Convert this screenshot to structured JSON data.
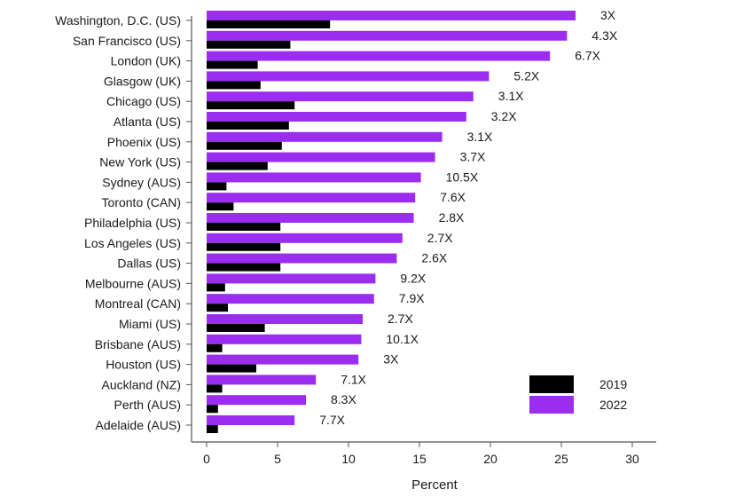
{
  "chart_data": {
    "type": "bar",
    "orientation": "horizontal",
    "categories": [
      "Washington, D.C. (US)",
      "San Francisco (US)",
      "London (UK)",
      "Glasgow (UK)",
      "Chicago (US)",
      "Atlanta (US)",
      "Phoenix (US)",
      "New York (US)",
      "Sydney (AUS)",
      "Toronto (CAN)",
      "Philadelphia (US)",
      "Los Angeles (US)",
      "Dallas (US)",
      "Melbourne (AUS)",
      "Montreal (CAN)",
      "Miami (US)",
      "Brisbane (AUS)",
      "Houston (US)",
      "Auckland (NZ)",
      "Perth (AUS)",
      "Adelaide (AUS)"
    ],
    "series": [
      {
        "name": "2019",
        "color": "#000000",
        "values": [
          8.7,
          5.9,
          3.6,
          3.8,
          6.2,
          5.8,
          5.3,
          4.3,
          1.4,
          1.9,
          5.2,
          5.2,
          5.2,
          1.3,
          1.5,
          4.1,
          1.1,
          3.5,
          1.1,
          0.8,
          0.8
        ]
      },
      {
        "name": "2022",
        "color": "#9b2df0",
        "values": [
          26.0,
          25.4,
          24.2,
          19.9,
          18.8,
          18.3,
          16.6,
          16.1,
          15.1,
          14.7,
          14.6,
          13.8,
          13.4,
          11.9,
          11.8,
          11.0,
          10.9,
          10.7,
          7.7,
          7.0,
          6.2
        ]
      }
    ],
    "ratio_labels": [
      "3X",
      "4.3X",
      "6.7X",
      "5.2X",
      "3.1X",
      "3.2X",
      "3.1X",
      "3.7X",
      "10.5X",
      "7.6X",
      "2.8X",
      "2.7X",
      "2.6X",
      "9.2X",
      "7.9X",
      "2.7X",
      "10.1X",
      "3X",
      "7.1X",
      "8.3X",
      "7.7X"
    ],
    "xlabel": "Percent",
    "ylabel": "",
    "xlim": [
      0,
      30
    ],
    "xticks": [
      "0",
      "5",
      "10",
      "15",
      "20",
      "25",
      "30"
    ],
    "grid": false,
    "legend": {
      "position": "bottom-right",
      "entries": [
        "2019",
        "2022"
      ]
    }
  }
}
